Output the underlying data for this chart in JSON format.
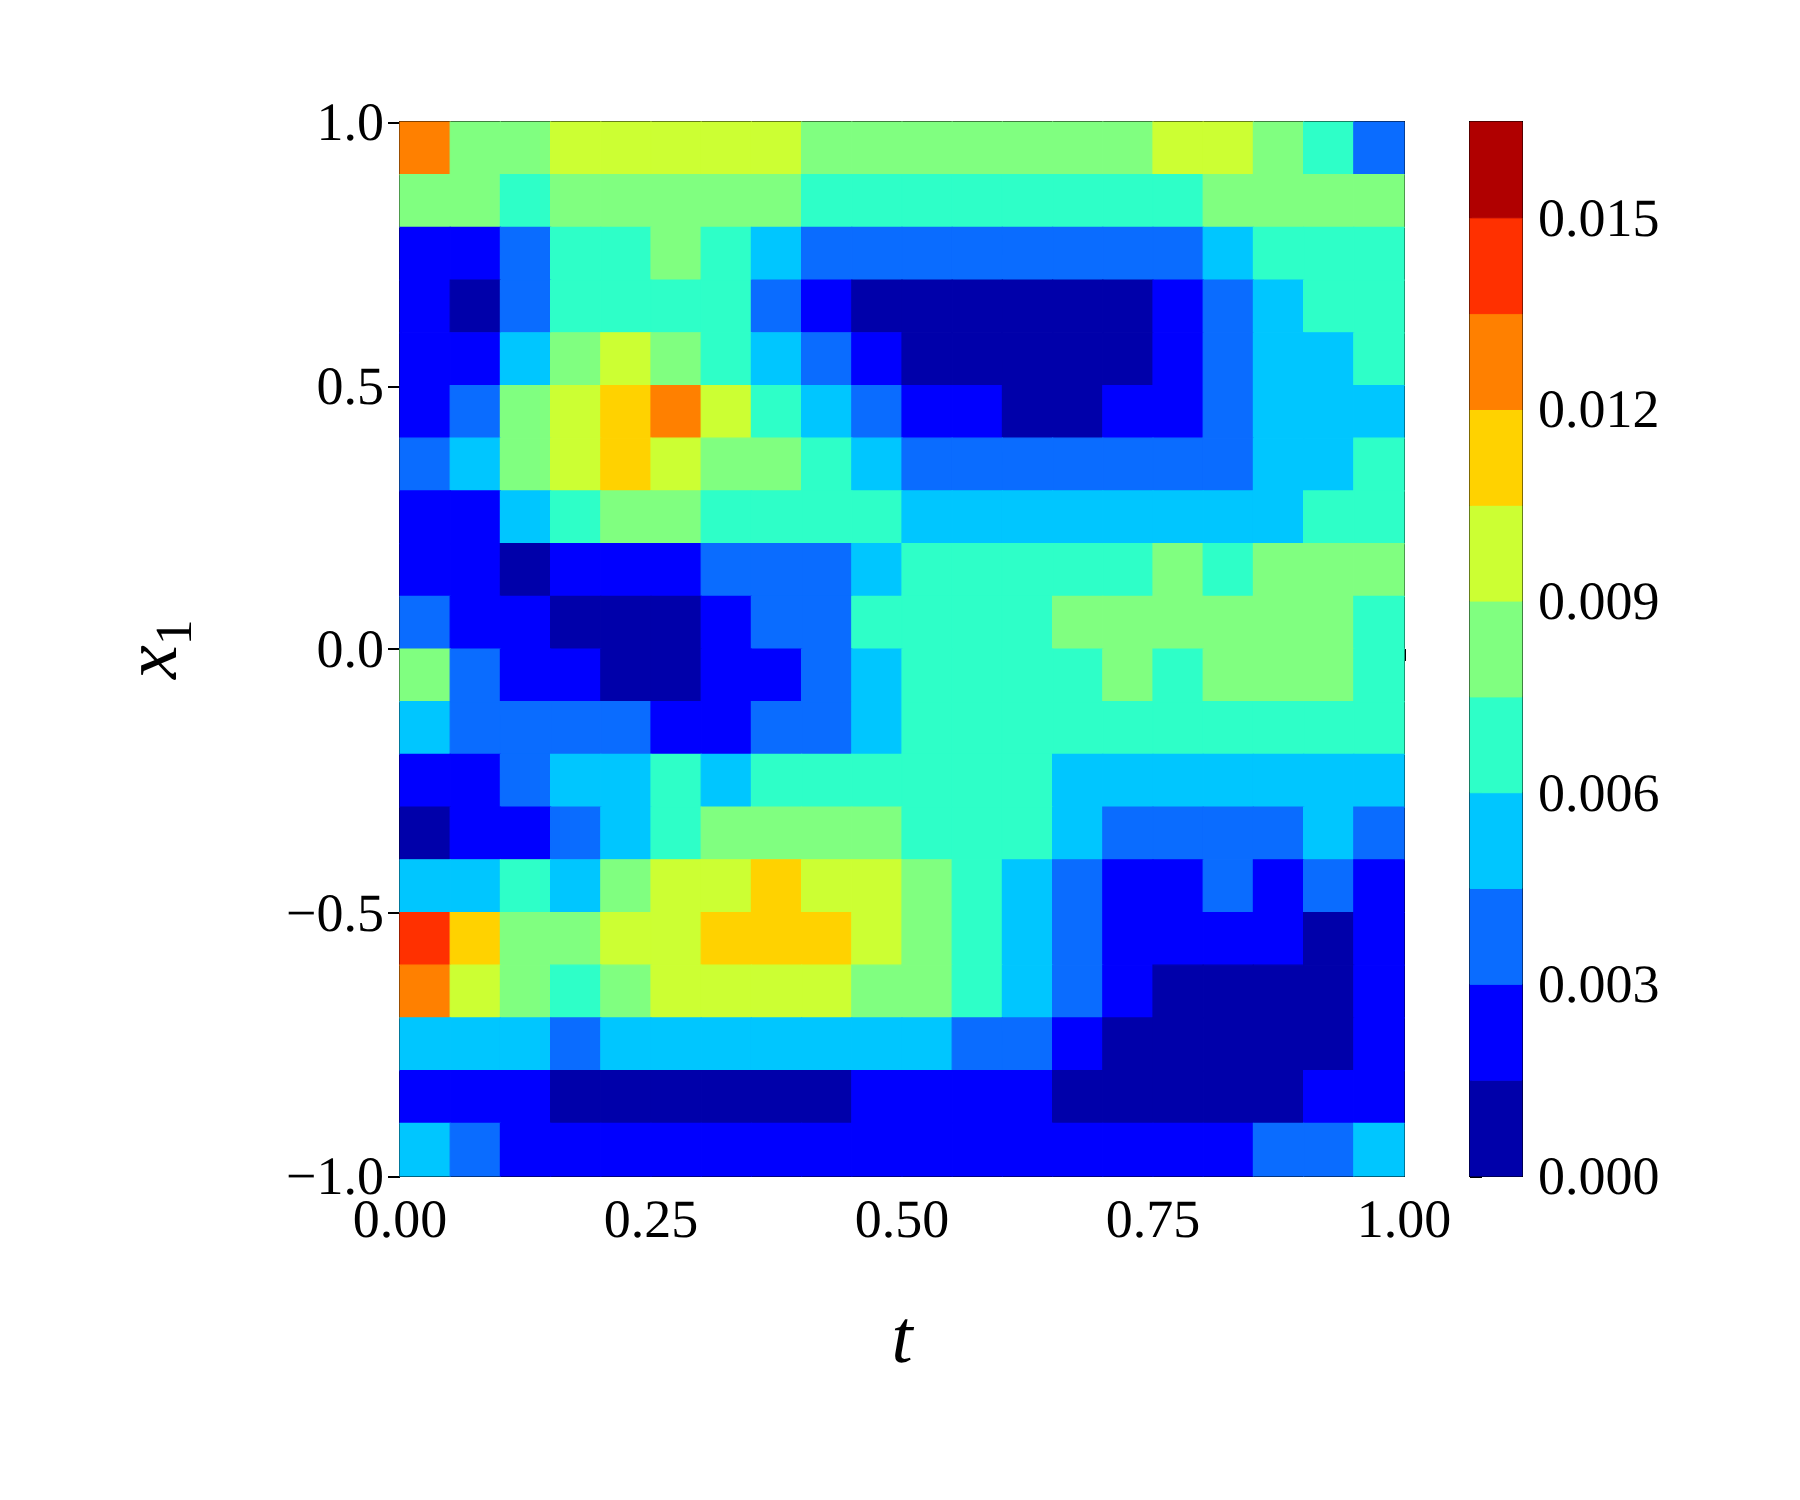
{
  "chart_data": {
    "type": "heatmap",
    "xlabel": "t",
    "ylabel": "x$_{1}$",
    "xlim": [
      0,
      1
    ],
    "xticks": [
      {
        "value": 0,
        "label": "0.00"
      },
      {
        "value": 0.25,
        "label": "0.25"
      },
      {
        "value": 0.5,
        "label": "0.50"
      },
      {
        "value": 0.75,
        "label": "0.75"
      },
      {
        "value": 1,
        "label": "1.00"
      }
    ],
    "ylim": [
      -1,
      1
    ],
    "yticks": [
      {
        "value": -1,
        "label": "−1.0"
      },
      {
        "value": -0.5,
        "label": "−0.5"
      },
      {
        "value": 0,
        "label": "0.0"
      },
      {
        "value": 0.5,
        "label": "0.5"
      },
      {
        "value": 1,
        "label": "1.0"
      }
    ],
    "clim": [
      0,
      0.0165
    ],
    "cticks": [
      {
        "value": 0,
        "label": "0.000"
      },
      {
        "value": 0.003,
        "label": "0.003"
      },
      {
        "value": 0.006,
        "label": "0.006"
      },
      {
        "value": 0.009,
        "label": "0.009"
      },
      {
        "value": 0.012,
        "label": "0.012"
      },
      {
        "value": 0.015,
        "label": "0.015"
      }
    ],
    "cells": [
      [
        0.0127,
        0.0082,
        0.0082,
        0.0097,
        0.0097,
        0.0097,
        0.0097,
        0.0097,
        0.0082,
        0.0082,
        0.0082,
        0.0082,
        0.0082,
        0.0082,
        0.0082,
        0.0097,
        0.0097,
        0.0082,
        0.0067,
        0.0037
      ],
      [
        0.0082,
        0.0082,
        0.0067,
        0.0082,
        0.0082,
        0.0082,
        0.0082,
        0.0082,
        0.0067,
        0.0067,
        0.0067,
        0.0067,
        0.0067,
        0.0067,
        0.0067,
        0.0067,
        0.0082,
        0.0082,
        0.0082,
        0.0082
      ],
      [
        0.0022,
        0.0022,
        0.0037,
        0.0067,
        0.0067,
        0.0082,
        0.0067,
        0.0052,
        0.0037,
        0.0037,
        0.0037,
        0.0037,
        0.0037,
        0.0037,
        0.0037,
        0.0037,
        0.0052,
        0.0067,
        0.0067,
        0.0067
      ],
      [
        0.0022,
        0.0007,
        0.0037,
        0.0067,
        0.0067,
        0.0067,
        0.0067,
        0.0037,
        0.0022,
        0.0007,
        0.0007,
        0.0007,
        0.0007,
        0.0007,
        0.0007,
        0.0022,
        0.0037,
        0.0052,
        0.0067,
        0.0067
      ],
      [
        0.0022,
        0.0022,
        0.0052,
        0.0082,
        0.0097,
        0.0082,
        0.0067,
        0.0052,
        0.0037,
        0.0022,
        0.0007,
        0.0007,
        0.0007,
        0.0007,
        0.0007,
        0.0022,
        0.0037,
        0.0052,
        0.0052,
        0.0067
      ],
      [
        0.0022,
        0.0037,
        0.0082,
        0.0097,
        0.0112,
        0.0127,
        0.0097,
        0.0067,
        0.0052,
        0.0037,
        0.0022,
        0.0022,
        0.0007,
        0.0007,
        0.0022,
        0.0022,
        0.0037,
        0.0052,
        0.0052,
        0.0052
      ],
      [
        0.0037,
        0.0052,
        0.0082,
        0.0097,
        0.0112,
        0.0097,
        0.0082,
        0.0082,
        0.0067,
        0.0052,
        0.0037,
        0.0037,
        0.0037,
        0.0037,
        0.0037,
        0.0037,
        0.0037,
        0.0052,
        0.0052,
        0.0067
      ],
      [
        0.0022,
        0.0022,
        0.0052,
        0.0067,
        0.0082,
        0.0082,
        0.0067,
        0.0067,
        0.0067,
        0.0067,
        0.0052,
        0.0052,
        0.0052,
        0.0052,
        0.0052,
        0.0052,
        0.0052,
        0.0052,
        0.0067,
        0.0067
      ],
      [
        0.0022,
        0.0022,
        0.0007,
        0.0022,
        0.0022,
        0.0022,
        0.0037,
        0.0037,
        0.0037,
        0.0052,
        0.0067,
        0.0067,
        0.0067,
        0.0067,
        0.0067,
        0.0082,
        0.0067,
        0.0082,
        0.0082,
        0.0082
      ],
      [
        0.0037,
        0.0022,
        0.0022,
        0.0007,
        0.0007,
        0.0007,
        0.0022,
        0.0037,
        0.0037,
        0.0067,
        0.0067,
        0.0067,
        0.0067,
        0.0082,
        0.0082,
        0.0082,
        0.0082,
        0.0082,
        0.0082,
        0.0067
      ],
      [
        0.0082,
        0.0037,
        0.0022,
        0.0022,
        0.0007,
        0.0007,
        0.0022,
        0.0022,
        0.0037,
        0.0052,
        0.0067,
        0.0067,
        0.0067,
        0.0067,
        0.0082,
        0.0067,
        0.0082,
        0.0082,
        0.0082,
        0.0067
      ],
      [
        0.0052,
        0.0037,
        0.0037,
        0.0037,
        0.0037,
        0.0022,
        0.0022,
        0.0037,
        0.0037,
        0.0052,
        0.0067,
        0.0067,
        0.0067,
        0.0067,
        0.0067,
        0.0067,
        0.0067,
        0.0067,
        0.0067,
        0.0067
      ],
      [
        0.0022,
        0.0022,
        0.0037,
        0.0052,
        0.0052,
        0.0067,
        0.0052,
        0.0067,
        0.0067,
        0.0067,
        0.0067,
        0.0067,
        0.0067,
        0.0052,
        0.0052,
        0.0052,
        0.0052,
        0.0052,
        0.0052,
        0.0052
      ],
      [
        0.0007,
        0.0022,
        0.0022,
        0.0037,
        0.0052,
        0.0067,
        0.0082,
        0.0082,
        0.0082,
        0.0082,
        0.0067,
        0.0067,
        0.0067,
        0.0052,
        0.0037,
        0.0037,
        0.0037,
        0.0037,
        0.0052,
        0.0037
      ],
      [
        0.0052,
        0.0052,
        0.0067,
        0.0052,
        0.0082,
        0.0097,
        0.0097,
        0.0112,
        0.0097,
        0.0097,
        0.0082,
        0.0067,
        0.0052,
        0.0037,
        0.0022,
        0.0022,
        0.0037,
        0.0022,
        0.0037,
        0.0022
      ],
      [
        0.0142,
        0.0112,
        0.0082,
        0.0082,
        0.0097,
        0.0097,
        0.0112,
        0.0112,
        0.0112,
        0.0097,
        0.0082,
        0.0067,
        0.0052,
        0.0037,
        0.0022,
        0.0022,
        0.0022,
        0.0022,
        0.0007,
        0.0022
      ],
      [
        0.0127,
        0.0097,
        0.0082,
        0.0067,
        0.0082,
        0.0097,
        0.0097,
        0.0097,
        0.0097,
        0.0082,
        0.0082,
        0.0067,
        0.0052,
        0.0037,
        0.0022,
        0.0007,
        0.0007,
        0.0007,
        0.0007,
        0.0022
      ],
      [
        0.0052,
        0.0052,
        0.0052,
        0.0037,
        0.0052,
        0.0052,
        0.0052,
        0.0052,
        0.0052,
        0.0052,
        0.0052,
        0.0037,
        0.0037,
        0.0022,
        0.0007,
        0.0007,
        0.0007,
        0.0007,
        0.0007,
        0.0022
      ],
      [
        0.0022,
        0.0022,
        0.0022,
        0.0007,
        0.0007,
        0.0007,
        0.0007,
        0.0007,
        0.0007,
        0.0022,
        0.0022,
        0.0022,
        0.0022,
        0.0007,
        0.0007,
        0.0007,
        0.0007,
        0.0007,
        0.0022,
        0.0022
      ],
      [
        0.0052,
        0.0037,
        0.0022,
        0.0022,
        0.0022,
        0.0022,
        0.0022,
        0.0022,
        0.0022,
        0.0022,
        0.0022,
        0.0022,
        0.0022,
        0.0022,
        0.0022,
        0.0022,
        0.0022,
        0.0037,
        0.0037,
        0.0052
      ]
    ]
  }
}
